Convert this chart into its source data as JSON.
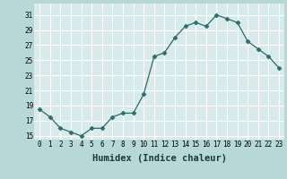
{
  "x": [
    0,
    1,
    2,
    3,
    4,
    5,
    6,
    7,
    8,
    9,
    10,
    11,
    12,
    13,
    14,
    15,
    16,
    17,
    18,
    19,
    20,
    21,
    22,
    23
  ],
  "y": [
    18.5,
    17.5,
    16.0,
    15.5,
    15.0,
    16.0,
    16.0,
    17.5,
    18.0,
    18.0,
    20.5,
    25.5,
    26.0,
    28.0,
    29.5,
    30.0,
    29.5,
    31.0,
    30.5,
    30.0,
    27.5,
    26.5,
    25.5,
    24.0
  ],
  "line_color": "#2e6b6b",
  "marker": "D",
  "marker_size": 2.5,
  "bg_color": "#b8d8d8",
  "plot_bg_color": "#d8eaea",
  "grid_color": "#ffffff",
  "xlabel": "Humidex (Indice chaleur)",
  "xlim": [
    -0.5,
    23.5
  ],
  "ylim": [
    14.5,
    32.5
  ],
  "yticks": [
    15,
    17,
    19,
    21,
    23,
    25,
    27,
    29,
    31
  ],
  "xticks": [
    0,
    1,
    2,
    3,
    4,
    5,
    6,
    7,
    8,
    9,
    10,
    11,
    12,
    13,
    14,
    15,
    16,
    17,
    18,
    19,
    20,
    21,
    22,
    23
  ],
  "tick_label_size": 5.5,
  "xlabel_size": 7.5
}
